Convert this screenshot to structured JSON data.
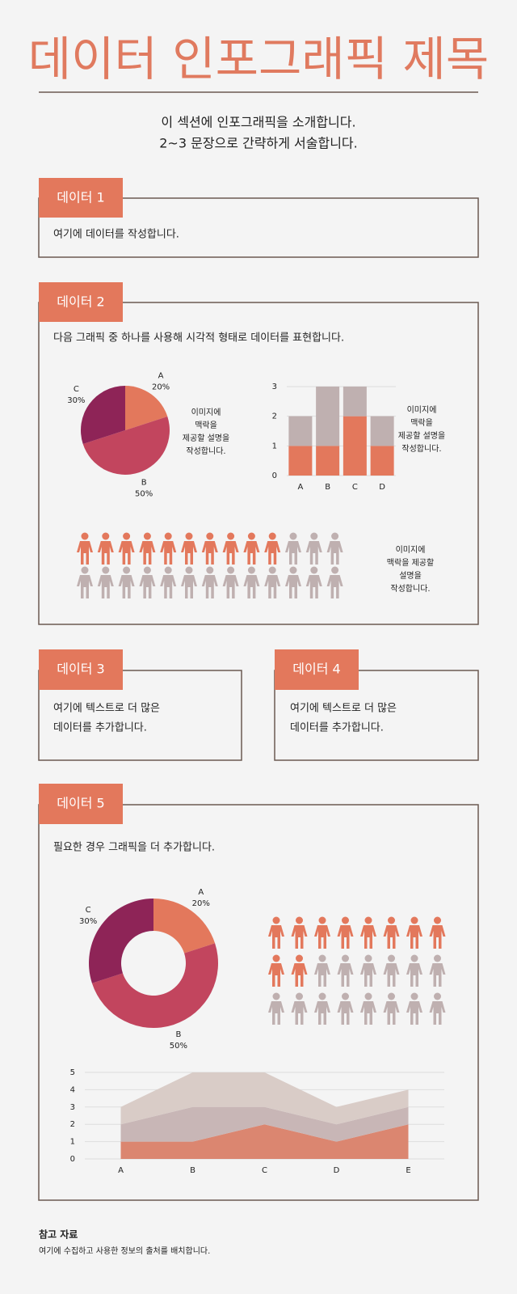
{
  "header": {
    "title": "데이터 인포그래픽 제목",
    "intro": [
      "이 섹션에 인포그래픽을 소개합니다.",
      "2~3 문장으로 간략하게 서술합니다."
    ]
  },
  "sections": [
    {
      "label": "데이터 1",
      "text": [
        "여기에 데이터를 작성합니다."
      ]
    },
    {
      "label": "데이터 2",
      "text": [
        "다음 그래픽 중 하나를 사용해 시각적 형태로 데이터를 표현합니다."
      ]
    },
    {
      "label": "데이터 3",
      "text": [
        "여기에 텍스트로 더 많은",
        "데이터를 추가합니다."
      ]
    },
    {
      "label": "데이터 4",
      "text": [
        "여기에 텍스트로 더 많은",
        "데이터를 추가합니다."
      ]
    },
    {
      "label": "데이터 5",
      "text": [
        "필요한 경우 그래픽을 더 추가합니다."
      ]
    }
  ],
  "chart_data": [
    {
      "type": "pie",
      "categories": [
        "A",
        "B",
        "C"
      ],
      "values": [
        20,
        50,
        30
      ],
      "value_labels": [
        "20%",
        "50%",
        "30%"
      ],
      "colors": [
        "#e3785c",
        "#c2455e",
        "#8e2457"
      ],
      "caption": [
        "이미지에",
        "맥락을",
        "제공할 설명을",
        "작성합니다."
      ]
    },
    {
      "type": "bar",
      "stacked": true,
      "categories": [
        "A",
        "B",
        "C",
        "D"
      ],
      "series": [
        {
          "color": "#e3785c",
          "values": [
            1,
            1,
            2,
            1
          ]
        },
        {
          "color": "#bfb0b0",
          "values": [
            1,
            2,
            1,
            1
          ]
        }
      ],
      "ylim": [
        0,
        3
      ],
      "yticks": [
        0,
        1,
        2,
        3
      ],
      "grid": true,
      "caption": [
        "이미지에",
        "맥락을",
        "제공할 설명을",
        "작성합니다."
      ]
    },
    {
      "type": "pictogram",
      "values": [
        10,
        16
      ],
      "colors": [
        "#e3785c",
        "#bfb0b0"
      ],
      "caption": [
        "이미지에",
        "맥락을 제공할",
        "설명을",
        "작성합니다."
      ]
    },
    {
      "type": "donut",
      "categories": [
        "A",
        "B",
        "C"
      ],
      "values": [
        20,
        50,
        30
      ],
      "value_labels": [
        "20%",
        "50%",
        "30%"
      ],
      "colors": [
        "#e3785c",
        "#c2455e",
        "#8e2457"
      ]
    },
    {
      "type": "pictogram",
      "values": [
        10,
        14
      ],
      "colors": [
        "#e3785c",
        "#bfb0b0"
      ]
    },
    {
      "type": "area",
      "stacked": true,
      "categories": [
        "A",
        "B",
        "C",
        "D",
        "E"
      ],
      "series": [
        {
          "color": "#db8670",
          "values": [
            1,
            1,
            2,
            1,
            2
          ]
        },
        {
          "color": "#c8b6b6",
          "values": [
            1,
            2,
            1,
            1,
            1
          ]
        },
        {
          "color": "#d9ccc7",
          "values": [
            1,
            2,
            2,
            1,
            1
          ]
        }
      ],
      "ylim": [
        0,
        5
      ],
      "yticks": [
        0,
        1,
        2,
        3,
        4,
        5
      ],
      "grid": true
    }
  ],
  "footer": {
    "title": "참고 자료",
    "text": "여기에 수집하고 사용한 정보의 출처를 배치합니다."
  }
}
